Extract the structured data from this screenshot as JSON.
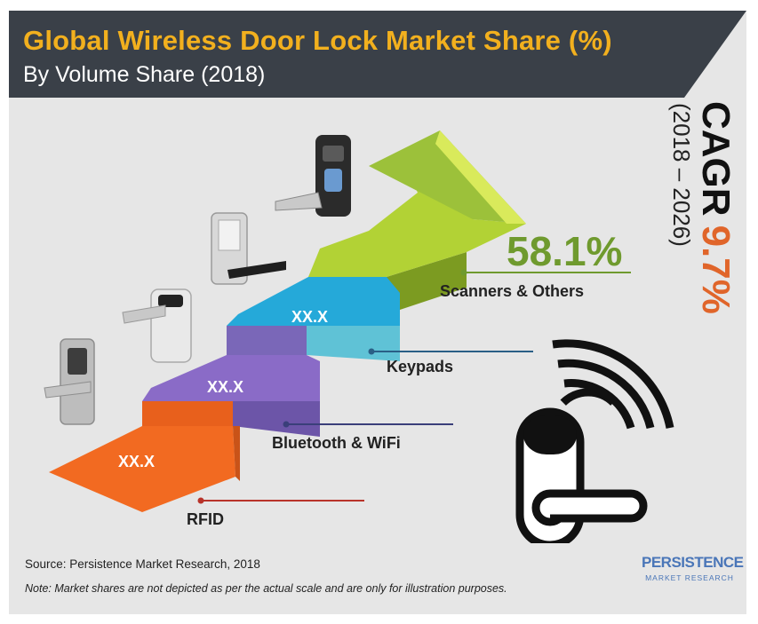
{
  "header": {
    "title": "Global Wireless Door Lock Market Share (%)",
    "subtitle": "By Volume Share (2018)"
  },
  "cagr": {
    "label": "CAGR",
    "value": "9.7%",
    "period": "(2018 – 2026)"
  },
  "footer": {
    "source": "Source: Persistence Market Research, 2018",
    "note": "Note: Market shares are not depicted as per the actual scale and are only for illustration purposes."
  },
  "logo": {
    "name": "PERSISTENCE",
    "sub": "MARKET RESEARCH"
  },
  "colors": {
    "rfid": "#f26a21",
    "bluetooth_wifi": "#8a6bc7",
    "keypads": "#25a9d9",
    "scanners_others": "#b2d235",
    "header_bg": "#3a4048",
    "title": "#f2b01e",
    "cagr_value": "#e0652a",
    "highlight_value": "#6f9a2e"
  },
  "icons": [
    "smart-lock-icon",
    "wireless-signal-icon"
  ],
  "chart_data": {
    "type": "bar",
    "categories": [
      "RFID",
      "Bluetooth & WiFi",
      "Keypads",
      "Scanners & Others"
    ],
    "value_labels": [
      "XX.X",
      "XX.X",
      "XX.X",
      "58.1%"
    ],
    "values": [
      null,
      null,
      null,
      58.1
    ],
    "title": "Global Wireless Door Lock Market Share (%)",
    "subtitle": "By Volume Share (2018)"
  }
}
